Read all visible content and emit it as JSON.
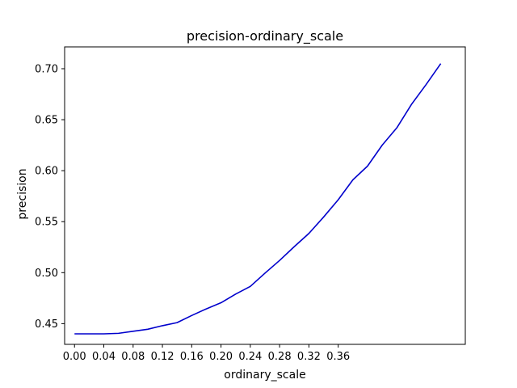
{
  "chart_data": {
    "type": "line",
    "title": "precision-ordinary_scale",
    "xlabel": "ordinary_scale",
    "ylabel": "precision",
    "x_ticks": [
      "0.00",
      "0.04",
      "0.08",
      "0.12",
      "0.16",
      "0.20",
      "0.24",
      "0.28",
      "0.32",
      "0.36"
    ],
    "y_ticks": [
      "0.45",
      "0.50",
      "0.55",
      "0.60",
      "0.65",
      "0.70"
    ],
    "xlim": [
      -0.0135,
      0.5335
    ],
    "ylim": [
      0.4297,
      0.7214
    ],
    "grid": false,
    "line_color": "#0000cc",
    "series": [
      {
        "x": [
          0.0,
          0.02,
          0.04,
          0.06,
          0.08,
          0.1,
          0.12,
          0.14,
          0.16,
          0.18,
          0.2,
          0.22,
          0.24,
          0.26,
          0.28,
          0.3,
          0.32,
          0.34,
          0.36,
          0.38,
          0.4,
          0.42,
          0.44,
          0.46,
          0.48,
          0.5
        ],
        "y": [
          0.44,
          0.44,
          0.44,
          0.4405,
          0.4425,
          0.4445,
          0.448,
          0.451,
          0.458,
          0.4645,
          0.4705,
          0.479,
          0.4865,
          0.4995,
          0.512,
          0.5255,
          0.5385,
          0.5545,
          0.5715,
          0.591,
          0.6045,
          0.625,
          0.642,
          0.665,
          0.6845,
          0.705
        ]
      }
    ]
  }
}
